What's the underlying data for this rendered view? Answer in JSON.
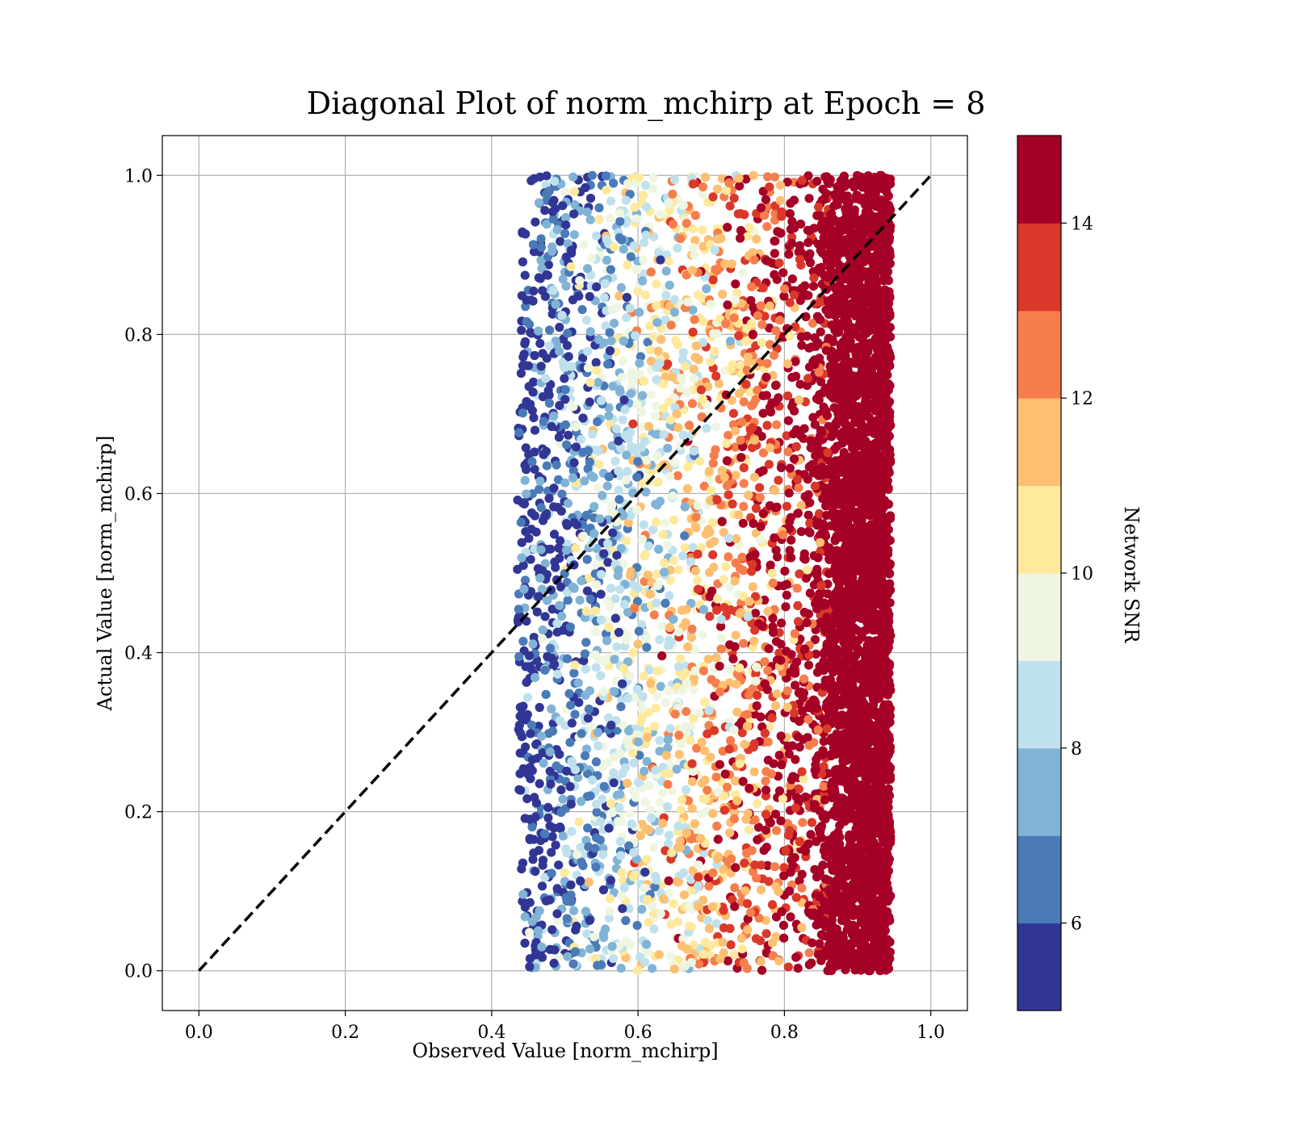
{
  "chart_data": {
    "type": "scatter",
    "title": "Diagonal Plot of norm_mchirp at Epoch = 8",
    "xlabel": "Observed Value [norm_mchirp]",
    "ylabel": "Actual Value [norm_mchirp]",
    "xlim": [
      -0.05,
      1.05
    ],
    "ylim": [
      -0.05,
      1.05
    ],
    "x_ticks": [
      "0.0",
      "0.2",
      "0.4",
      "0.6",
      "0.8",
      "1.0"
    ],
    "y_ticks": [
      "0.0",
      "0.2",
      "0.4",
      "0.6",
      "0.8",
      "1.0"
    ],
    "grid": true,
    "reference_line": {
      "from": [
        0.0,
        0.0
      ],
      "to": [
        1.0,
        1.0
      ],
      "style": "dashed",
      "color": "#000000"
    },
    "scatter_x_range": [
      0.41,
      0.96
    ],
    "scatter_y_range": [
      0.0,
      1.0
    ],
    "color_trend": "Network SNR increases with observed value: blue (~5) near x=0.45 to dark red (>=14) near x=0.9",
    "colorbar": {
      "label": "Network SNR",
      "range": [
        5,
        15
      ],
      "ticks": [
        "6",
        "8",
        "10",
        "12",
        "14"
      ],
      "bins": [
        {
          "from": 5,
          "to": 6,
          "color": "#313695"
        },
        {
          "from": 6,
          "to": 7,
          "color": "#4a7ab7"
        },
        {
          "from": 7,
          "to": 8,
          "color": "#80b3d6"
        },
        {
          "from": 8,
          "to": 9,
          "color": "#bfe1ed"
        },
        {
          "from": 9,
          "to": 10,
          "color": "#eef6e1"
        },
        {
          "from": 10,
          "to": 11,
          "color": "#fee99d"
        },
        {
          "from": 11,
          "to": 12,
          "color": "#fdbf71"
        },
        {
          "from": 12,
          "to": 13,
          "color": "#f57e4c"
        },
        {
          "from": 13,
          "to": 14,
          "color": "#da382a"
        },
        {
          "from": 14,
          "to": 15,
          "color": "#a50026"
        }
      ]
    }
  }
}
